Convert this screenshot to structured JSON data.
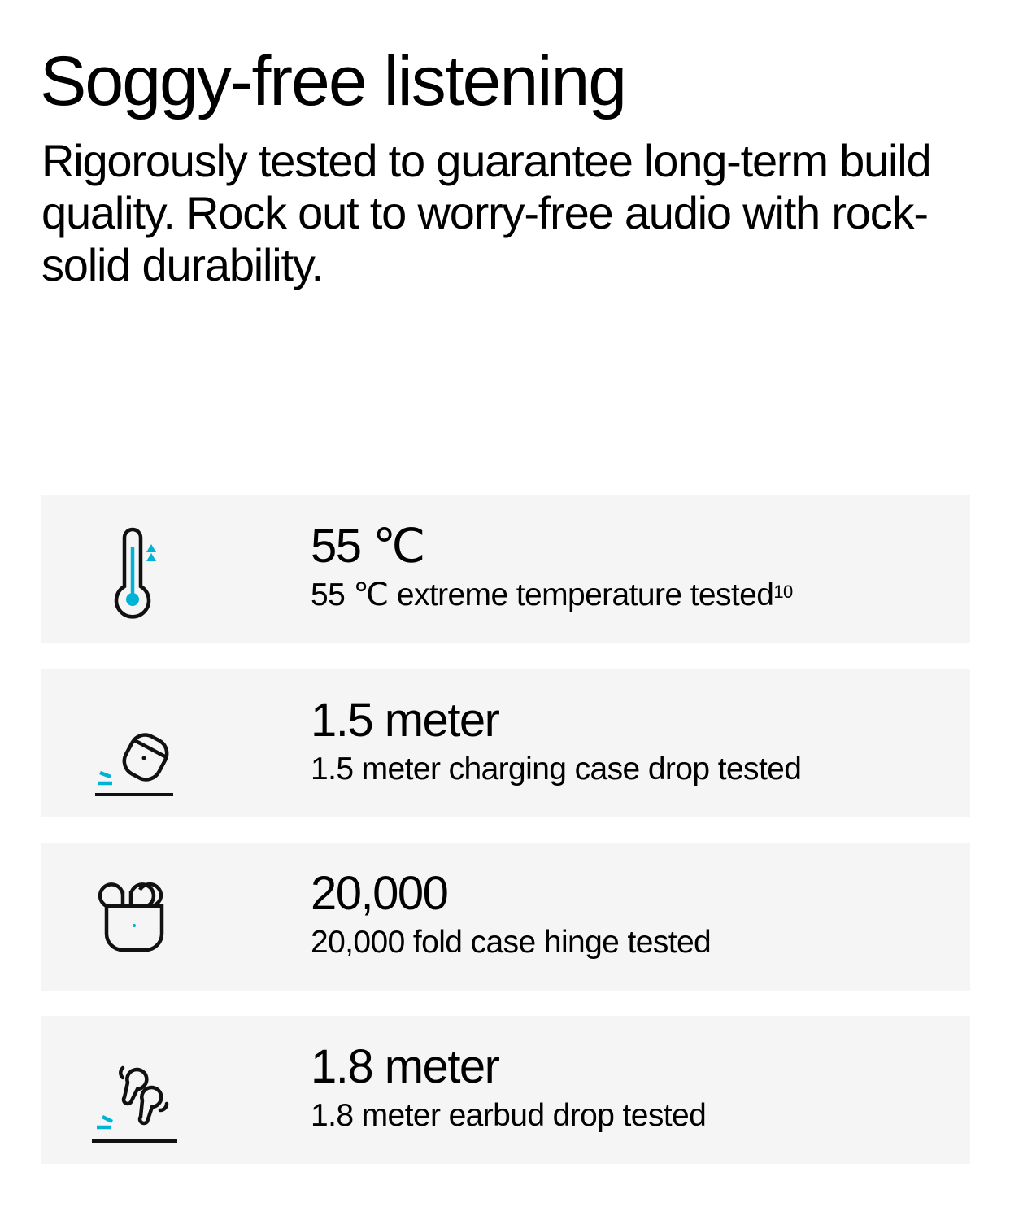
{
  "header": {
    "title": "Soggy-free listening",
    "subtitle": "Rigorously tested to guarantee long-term build quality. Rock out to worry-free audio with rock-solid durability."
  },
  "accent_color": "#00b2d6",
  "features": [
    {
      "icon": "thermometer-icon",
      "value": "55 ℃",
      "description": "55 ℃ extreme temperature tested",
      "footnote": "10"
    },
    {
      "icon": "case-drop-icon",
      "value": "1.5 meter",
      "description": "1.5 meter charging case drop tested"
    },
    {
      "icon": "case-hinge-icon",
      "value": "20,000",
      "description": "20,000 fold case hinge tested"
    },
    {
      "icon": "earbud-drop-icon",
      "value": "1.8 meter",
      "description": "1.8 meter earbud drop tested"
    }
  ]
}
